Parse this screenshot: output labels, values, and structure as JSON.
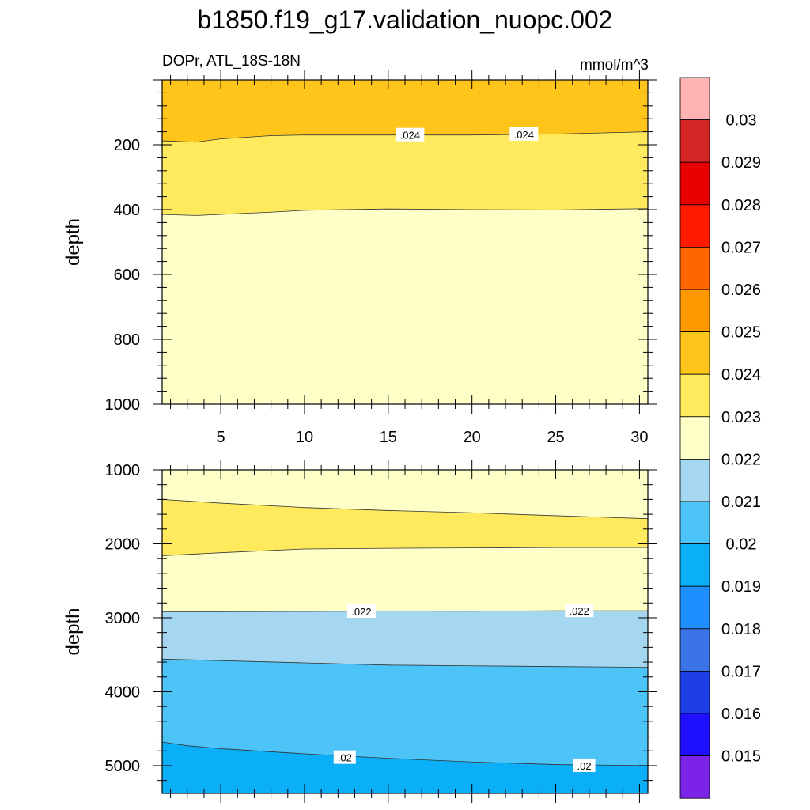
{
  "chart_data": {
    "title": "b1850.f19_g17.validation_nuopc.002",
    "variable_label": "DOPr, ATL_18S-18N",
    "units_label": "mmol/m^3",
    "type": "filled-contour",
    "colorbar": {
      "levels": [
        "0.03",
        "0.029",
        "0.028",
        "0.027",
        "0.026",
        "0.025",
        "0.024",
        "0.023",
        "0.022",
        "0.021",
        "0.02",
        "0.019",
        "0.018",
        "0.017",
        "0.016",
        "0.015"
      ],
      "colors_top_to_bottom": [
        "#ffb3b3",
        "#d42626",
        "#e60000",
        "#ff1a00",
        "#ff6600",
        "#ff9900",
        "#ffc51a",
        "#ffea5e",
        "#ffffc8",
        "#a5d8f0",
        "#4dc4f7",
        "#0aaff7",
        "#1f8fff",
        "#3b74e6",
        "#1f3fe6",
        "#1f10ff",
        "#7b24e8"
      ]
    },
    "panels": [
      {
        "ylabel": "depth",
        "ylim": [
          0,
          1000
        ],
        "xlim": [
          1.5,
          30.5
        ],
        "yticks": [
          "200",
          "400",
          "600",
          "800",
          "1000"
        ],
        "xticks": [
          "5",
          "10",
          "15",
          "20",
          "25",
          "30"
        ],
        "boundaries": [
          {
            "level": 0.024,
            "depth_by_x": [
              [
                1.5,
                188
              ],
              [
                3.5,
                192
              ],
              [
                5,
                182
              ],
              [
                8,
                172
              ],
              [
                10,
                170
              ],
              [
                20,
                170
              ],
              [
                25,
                167
              ],
              [
                30.5,
                160
              ]
            ]
          },
          {
            "level": 0.023,
            "depth_by_x": [
              [
                1.5,
                415
              ],
              [
                3.5,
                418
              ],
              [
                8,
                408
              ],
              [
                10,
                402
              ],
              [
                15,
                398
              ],
              [
                20,
                400
              ],
              [
                25,
                401
              ],
              [
                30.5,
                397
              ]
            ]
          }
        ],
        "fills": [
          "#ffc51a",
          "#ffea5e",
          "#ffffc8"
        ],
        "contour_labels": [
          {
            "text": ".024",
            "x": 16.3,
            "depth": 170
          },
          {
            "text": ".024",
            "x": 23.1,
            "depth": 168
          }
        ]
      },
      {
        "ylabel": "depth",
        "ylim": [
          1000,
          5375
        ],
        "xlim": [
          1.5,
          30.5
        ],
        "yticks": [
          "1000",
          "2000",
          "3000",
          "4000",
          "5000"
        ],
        "xticks": [],
        "boundaries": [
          {
            "level": 0.023,
            "depth_by_x": [
              [
                1.5,
                1400
              ],
              [
                5,
                1450
              ],
              [
                10,
                1510
              ],
              [
                15,
                1550
              ],
              [
                20,
                1580
              ],
              [
                25,
                1620
              ],
              [
                30.5,
                1660
              ]
            ]
          },
          {
            "level": 0.023,
            "depth_by_x": [
              [
                1.5,
                2160
              ],
              [
                5,
                2120
              ],
              [
                10,
                2070
              ],
              [
                15,
                2060
              ],
              [
                20,
                2055
              ],
              [
                25,
                2050
              ],
              [
                30.5,
                2050
              ]
            ]
          },
          {
            "level": 0.022,
            "depth_by_x": [
              [
                1.5,
                2920
              ],
              [
                10,
                2915
              ],
              [
                15,
                2910
              ],
              [
                20,
                2912
              ],
              [
                25,
                2905
              ],
              [
                30.5,
                2905
              ]
            ]
          },
          {
            "level": 0.021,
            "depth_by_x": [
              [
                1.5,
                3560
              ],
              [
                5,
                3580
              ],
              [
                10,
                3610
              ],
              [
                15,
                3640
              ],
              [
                20,
                3650
              ],
              [
                25,
                3660
              ],
              [
                30.5,
                3670
              ]
            ]
          },
          {
            "level": 0.02,
            "depth_by_x": [
              [
                1.5,
                4680
              ],
              [
                3,
                4730
              ],
              [
                5,
                4770
              ],
              [
                10,
                4840
              ],
              [
                15,
                4900
              ],
              [
                20,
                4950
              ],
              [
                25,
                4985
              ],
              [
                30.5,
                5000
              ]
            ]
          }
        ],
        "fills": [
          "#ffffc8",
          "#ffea5e",
          "#ffffc8",
          "#a5d8f0",
          "#4dc4f7",
          "#0aaff7"
        ],
        "contour_labels": [
          {
            "text": ".022",
            "x": 13.4,
            "depth": 2915
          },
          {
            "text": ".022",
            "x": 26.4,
            "depth": 2905
          },
          {
            "text": ".02",
            "x": 12.4,
            "depth": 4890
          },
          {
            "text": ".02",
            "x": 26.7,
            "depth": 5000
          }
        ]
      }
    ]
  }
}
